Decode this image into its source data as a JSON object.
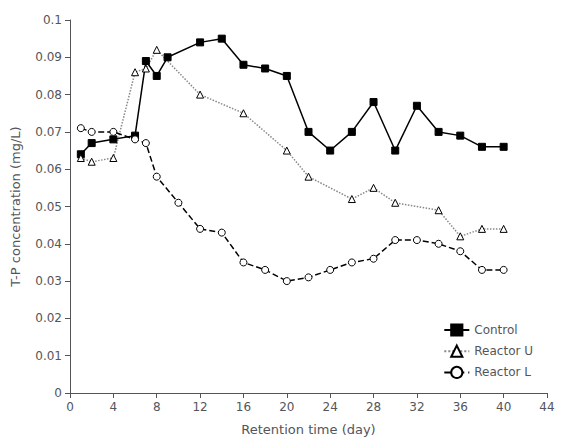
{
  "chart_data": {
    "type": "line",
    "x_label": "Retention time (day)",
    "y_label": "T-P concentration (mg/L)",
    "xlim": [
      0,
      44
    ],
    "ylim": [
      0,
      0.1
    ],
    "xticks": [
      0,
      4,
      8,
      12,
      16,
      20,
      24,
      28,
      32,
      36,
      40,
      44
    ],
    "yticks": [
      0,
      0.01,
      0.02,
      0.03,
      0.04,
      0.05,
      0.06,
      0.07,
      0.08,
      0.09,
      0.1
    ],
    "grid": false,
    "legend": "lower right",
    "series": [
      {
        "name": "Control",
        "color": "#000000",
        "marker": "square",
        "line_style": "solid",
        "x": [
          1,
          2,
          4,
          6,
          7,
          8,
          9,
          12,
          14,
          16,
          18,
          20,
          22,
          24,
          26,
          28,
          30,
          32,
          34,
          36,
          38,
          40
        ],
        "values": [
          0.064,
          0.067,
          0.068,
          0.069,
          0.089,
          0.085,
          0.09,
          0.094,
          0.095,
          0.088,
          0.087,
          0.085,
          0.07,
          0.065,
          0.07,
          0.078,
          0.065,
          0.077,
          0.07,
          0.069,
          0.066,
          0.066
        ]
      },
      {
        "name": "Reactor U",
        "color": "#888888",
        "marker": "open_triangle",
        "line_style": "dotted",
        "x": [
          1,
          2,
          4,
          6,
          7,
          8,
          12,
          16,
          20,
          22,
          26,
          28,
          30,
          34,
          36,
          38,
          40
        ],
        "values": [
          0.063,
          0.062,
          0.063,
          0.086,
          0.087,
          0.092,
          0.08,
          0.075,
          0.065,
          0.058,
          0.052,
          0.055,
          0.051,
          0.049,
          0.042,
          0.044,
          0.044
        ]
      },
      {
        "name": "Reactor L",
        "color": "#000000",
        "marker": "open_circle",
        "line_style": "dashed",
        "x": [
          1,
          2,
          4,
          6,
          7,
          8,
          10,
          12,
          14,
          16,
          18,
          20,
          22,
          24,
          26,
          28,
          30,
          32,
          34,
          36,
          38,
          40
        ],
        "values": [
          0.071,
          0.07,
          0.07,
          0.068,
          0.067,
          0.058,
          0.051,
          0.044,
          0.043,
          0.035,
          0.033,
          0.03,
          0.031,
          0.033,
          0.035,
          0.036,
          0.041,
          0.041,
          0.04,
          0.038,
          0.033,
          0.033
        ]
      }
    ]
  }
}
